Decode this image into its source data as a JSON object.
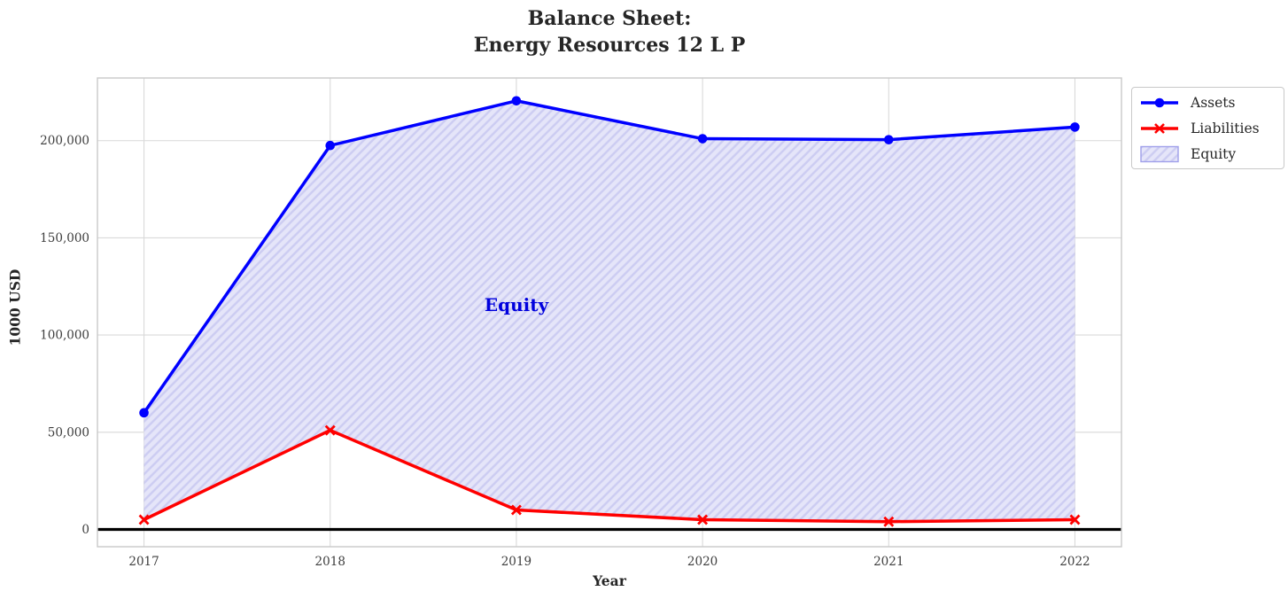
{
  "title": {
    "line1": "Balance Sheet:",
    "line2": "Energy Resources 12 L P"
  },
  "axes": {
    "x_label": "Year",
    "y_label": "1000 USD"
  },
  "annotation": {
    "text": "Equity",
    "x_year": 2019,
    "y_value": 115000,
    "color": "#0000dd"
  },
  "legend": {
    "position": "outside-upper-right",
    "items": [
      {
        "label": "Assets",
        "marker": "blue-line-circle"
      },
      {
        "label": "Liabilities",
        "marker": "red-line-x"
      },
      {
        "label": "Equity",
        "marker": "hatched-patch"
      }
    ]
  },
  "colors": {
    "assets_line": "#0000ff",
    "liabilities_line": "#ff0000",
    "equity_fill": "#e5e5f9",
    "equity_hatch": "#ccccf2",
    "equity_patch_edge": "#a0a0ea",
    "grid": "#d9d9d9",
    "spine": "#c9c9c9",
    "tick_text": "#3d3d3d",
    "zero_line": "#000000"
  },
  "chart_data": {
    "type": "line",
    "title": "Balance Sheet:\nEnergy Resources 12 L P",
    "xlabel": "Year",
    "ylabel": "1000 USD",
    "x": [
      2017,
      2018,
      2019,
      2020,
      2021,
      2022
    ],
    "series": [
      {
        "name": "Assets",
        "color": "#0000ff",
        "marker": "circle",
        "values": [
          60000,
          197500,
          220500,
          201000,
          200500,
          207000
        ]
      },
      {
        "name": "Liabilities",
        "color": "#ff0000",
        "marker": "x",
        "values": [
          5000,
          51000,
          10000,
          5000,
          4000,
          5000
        ]
      }
    ],
    "fill_between": {
      "name": "Equity",
      "lower": "Liabilities",
      "upper": "Assets",
      "hatch": "/",
      "facecolor": "#e5e5f9",
      "hatchcolor": "#ccccf2"
    },
    "xlim": [
      2016.75,
      2022.25
    ],
    "ylim": [
      -8900,
      232250
    ],
    "yticks": [
      0,
      50000,
      100000,
      150000,
      200000
    ],
    "ytick_labels": [
      "0",
      "50,000",
      "100,000",
      "150,000",
      "200,000"
    ],
    "xtick_labels": [
      "2017",
      "2018",
      "2019",
      "2020",
      "2021",
      "2022"
    ],
    "grid": true,
    "zero_line": 0,
    "legend_position": "outside-upper-right"
  }
}
